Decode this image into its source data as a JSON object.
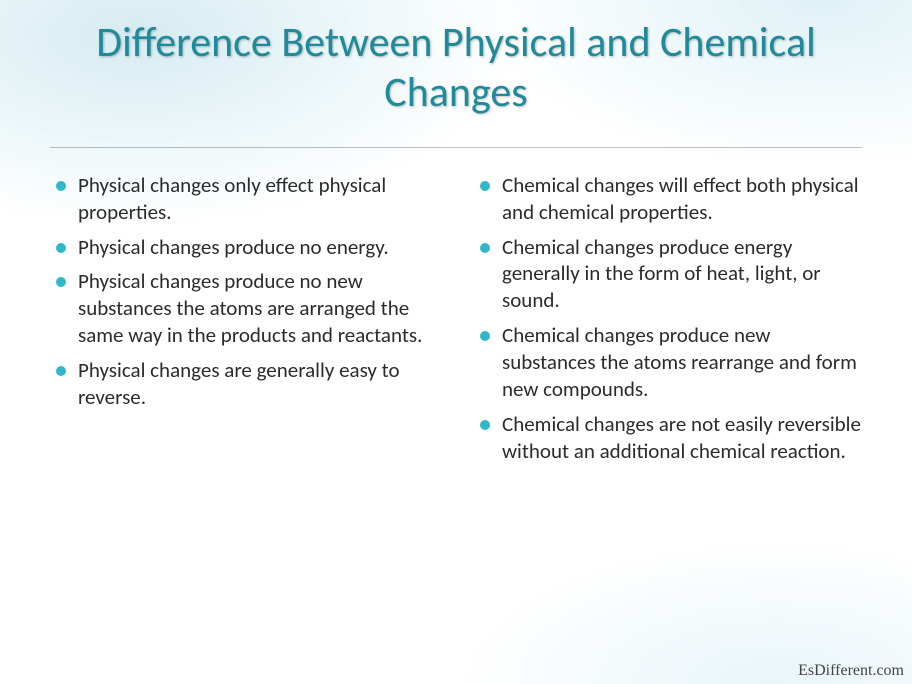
{
  "colors": {
    "title": "#1f8a9a",
    "bullet": "#2fb9c8",
    "body_text": "#2b2b2b",
    "underline": "rgba(0,0,0,0.25)"
  },
  "title": "Difference Between Physical and Chemical Changes",
  "left": [
    "Physical changes only effect physical properties.",
    "Physical changes produce no energy.",
    "Physical changes produce no new substances the atoms are arranged the same way in the products and reactants.",
    "Physical changes are generally easy to reverse."
  ],
  "right": [
    "Chemical changes will effect both physical and chemical properties.",
    "Chemical changes produce energy generally in the form of heat, light, or sound.",
    "Chemical changes produce new substances the atoms rearrange and form new compounds.",
    "Chemical changes are not easily reversible without an additional chemical reaction."
  ],
  "watermark": "EsDifferent.com"
}
